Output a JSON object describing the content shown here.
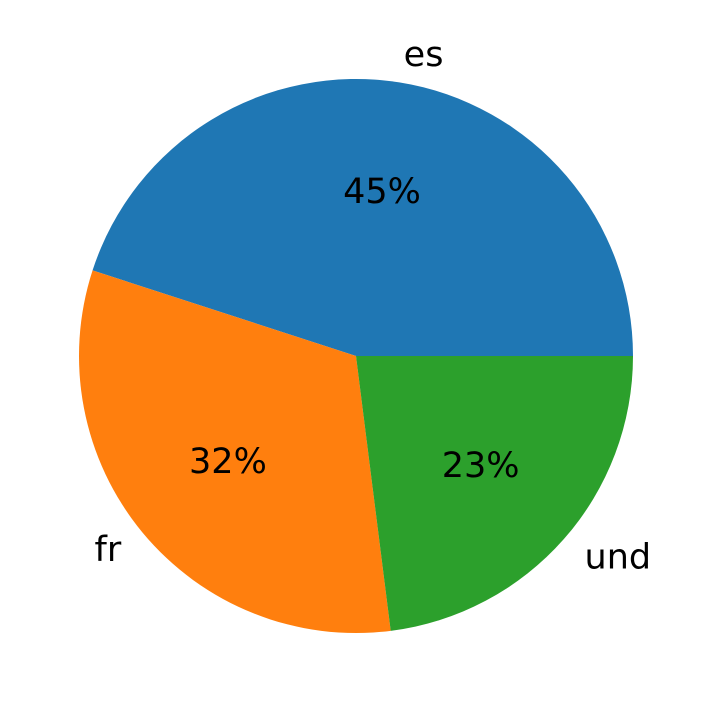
{
  "chart_data": {
    "type": "pie",
    "title": "",
    "start_angle_deg": 0,
    "direction": "counterclockwise",
    "legend": "none",
    "slices": [
      {
        "label": "es",
        "value": 45,
        "pct_label": "45%",
        "color": "#1f77b4"
      },
      {
        "label": "fr",
        "value": 32,
        "pct_label": "32%",
        "color": "#ff7f0e"
      },
      {
        "label": "und",
        "value": 23,
        "pct_label": "23%",
        "color": "#2ca02c"
      }
    ]
  }
}
